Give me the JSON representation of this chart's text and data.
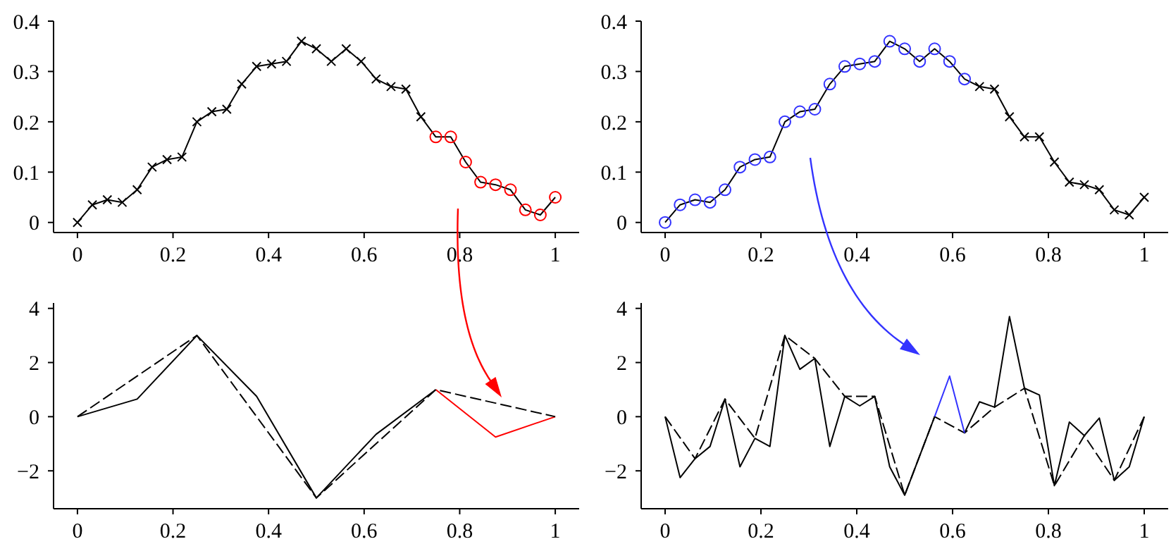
{
  "chart_data": [
    {
      "type": "line",
      "xlim": [
        -0.05,
        1.05
      ],
      "ylim": [
        -0.02,
        0.4
      ],
      "xticks": [
        0,
        0.2,
        0.4,
        0.6,
        0.8,
        1
      ],
      "yticks": [
        0,
        0.1,
        0.2,
        0.3,
        0.4
      ],
      "series": [
        {
          "color": "#000000",
          "marker": "none",
          "line_style": "solid",
          "x": [
            0,
            0.03125,
            0.0625,
            0.09375,
            0.125,
            0.15625,
            0.1875,
            0.21875,
            0.25,
            0.28125,
            0.3125,
            0.34375,
            0.375,
            0.40625,
            0.4375,
            0.46875,
            0.5,
            0.53125,
            0.5625,
            0.59375,
            0.625,
            0.65625,
            0.6875,
            0.71875,
            0.75,
            0.78125,
            0.8125,
            0.84375,
            0.875,
            0.90625,
            0.9375,
            0.96875,
            1
          ],
          "values": [
            0,
            0.035,
            0.045,
            0.04,
            0.065,
            0.11,
            0.125,
            0.13,
            0.2,
            0.22,
            0.225,
            0.275,
            0.31,
            0.315,
            0.32,
            0.36,
            0.345,
            0.32,
            0.345,
            0.32,
            0.285,
            0.27,
            0.265,
            0.21,
            0.17,
            0.17,
            0.12,
            0.08,
            0.075,
            0.065,
            0.025,
            0.015,
            0.05
          ]
        },
        {
          "type": "scatter",
          "color": "#000000",
          "marker": "cross",
          "x": [
            0,
            0.03125,
            0.0625,
            0.09375,
            0.125,
            0.15625,
            0.1875,
            0.21875,
            0.25,
            0.28125,
            0.3125,
            0.34375,
            0.375,
            0.40625,
            0.4375,
            0.46875,
            0.5,
            0.53125,
            0.5625,
            0.59375,
            0.625,
            0.65625,
            0.6875,
            0.71875
          ],
          "values": [
            0,
            0.035,
            0.045,
            0.04,
            0.065,
            0.11,
            0.125,
            0.13,
            0.2,
            0.22,
            0.225,
            0.275,
            0.31,
            0.315,
            0.32,
            0.36,
            0.345,
            0.32,
            0.345,
            0.32,
            0.285,
            0.27,
            0.265,
            0.21
          ]
        },
        {
          "type": "scatter",
          "color": "#ff0000",
          "marker": "circle",
          "x": [
            0.75,
            0.78125,
            0.8125,
            0.84375,
            0.875,
            0.90625,
            0.9375,
            0.96875,
            1
          ],
          "values": [
            0.17,
            0.17,
            0.12,
            0.08,
            0.075,
            0.065,
            0.025,
            0.015,
            0.05
          ]
        }
      ]
    },
    {
      "type": "line",
      "xlim": [
        -0.05,
        1.05
      ],
      "ylim": [
        -0.02,
        0.4
      ],
      "xticks": [
        0,
        0.2,
        0.4,
        0.6,
        0.8,
        1
      ],
      "yticks": [
        0,
        0.1,
        0.2,
        0.3,
        0.4
      ],
      "series": [
        {
          "color": "#000000",
          "marker": "none",
          "line_style": "solid",
          "x": [
            0,
            0.03125,
            0.0625,
            0.09375,
            0.125,
            0.15625,
            0.1875,
            0.21875,
            0.25,
            0.28125,
            0.3125,
            0.34375,
            0.375,
            0.40625,
            0.4375,
            0.46875,
            0.5,
            0.53125,
            0.5625,
            0.59375,
            0.625,
            0.65625,
            0.6875,
            0.71875,
            0.75,
            0.78125,
            0.8125,
            0.84375,
            0.875,
            0.90625,
            0.9375,
            0.96875,
            1
          ],
          "values": [
            0,
            0.035,
            0.045,
            0.04,
            0.065,
            0.11,
            0.125,
            0.13,
            0.2,
            0.22,
            0.225,
            0.275,
            0.31,
            0.315,
            0.32,
            0.36,
            0.345,
            0.32,
            0.345,
            0.32,
            0.285,
            0.27,
            0.265,
            0.21,
            0.17,
            0.17,
            0.12,
            0.08,
            0.075,
            0.065,
            0.025,
            0.015,
            0.05
          ]
        },
        {
          "type": "scatter",
          "color": "#3333ff",
          "marker": "circle",
          "x": [
            0,
            0.03125,
            0.0625,
            0.09375,
            0.125,
            0.15625,
            0.1875,
            0.21875,
            0.25,
            0.28125,
            0.3125,
            0.34375,
            0.375,
            0.40625,
            0.4375,
            0.46875,
            0.5,
            0.53125,
            0.5625,
            0.59375,
            0.625
          ],
          "values": [
            0,
            0.035,
            0.045,
            0.04,
            0.065,
            0.11,
            0.125,
            0.13,
            0.2,
            0.22,
            0.225,
            0.275,
            0.31,
            0.315,
            0.32,
            0.36,
            0.345,
            0.32,
            0.345,
            0.32,
            0.285
          ]
        },
        {
          "type": "scatter",
          "color": "#000000",
          "marker": "cross",
          "x": [
            0.65625,
            0.6875,
            0.71875,
            0.75,
            0.78125,
            0.8125,
            0.84375,
            0.875,
            0.90625,
            0.9375,
            0.96875,
            1
          ],
          "values": [
            0.27,
            0.265,
            0.21,
            0.17,
            0.17,
            0.12,
            0.08,
            0.075,
            0.065,
            0.025,
            0.015,
            0.05
          ]
        }
      ]
    },
    {
      "type": "line",
      "xlim": [
        -0.05,
        1.05
      ],
      "ylim": [
        -3.4,
        4.2
      ],
      "xticks": [
        0,
        0.2,
        0.4,
        0.6,
        0.8,
        1
      ],
      "yticks": [
        {
          "value": -2,
          "label": "−2"
        },
        0,
        2,
        4
      ],
      "series": [
        {
          "color": "#000000",
          "marker": "none",
          "line_style": "solid",
          "x": [
            0,
            0.125,
            0.25,
            0.375,
            0.5,
            0.625,
            0.75
          ],
          "values": [
            0,
            0.65,
            3,
            0.75,
            -3,
            -0.65,
            1
          ]
        },
        {
          "color": "#ff0000",
          "marker": "none",
          "line_style": "solid",
          "x": [
            0.75,
            0.875,
            1
          ],
          "values": [
            1,
            -0.75,
            0
          ]
        },
        {
          "color": "#000000",
          "marker": "none",
          "line_style": "dashed",
          "x": [
            0,
            0.25,
            0.5,
            0.75,
            1
          ],
          "values": [
            0,
            3,
            -3,
            1,
            0
          ]
        }
      ]
    },
    {
      "type": "line",
      "xlim": [
        -0.05,
        1.05
      ],
      "ylim": [
        -3.4,
        4.2
      ],
      "xticks": [
        0,
        0.2,
        0.4,
        0.6,
        0.8,
        1
      ],
      "yticks": [
        {
          "value": -2,
          "label": "−2"
        },
        0,
        2,
        4
      ],
      "series": [
        {
          "color": "#000000",
          "marker": "none",
          "line_style": "dashed",
          "x": [
            0,
            0.0625,
            0.125,
            0.1875,
            0.25,
            0.3125,
            0.375,
            0.4375,
            0.5,
            0.5625,
            0.625,
            0.6875,
            0.75,
            0.8125,
            0.875,
            0.9375,
            1
          ],
          "values": [
            0,
            -1.55,
            0.65,
            -0.8,
            3,
            2.15,
            0.75,
            0.75,
            -2.9,
            0,
            -0.6,
            0.35,
            1.05,
            -2.55,
            -0.7,
            -2.35,
            0
          ]
        },
        {
          "color": "#000000",
          "marker": "none",
          "line_style": "solid",
          "x": [
            0,
            0.03125,
            0.0625,
            0.09375,
            0.125,
            0.15625,
            0.1875,
            0.21875,
            0.25,
            0.28125,
            0.3125,
            0.34375,
            0.375,
            0.40625,
            0.4375,
            0.46875,
            0.5,
            0.53125,
            0.5625,
            0.59375,
            0.625,
            0.65625,
            0.6875,
            0.71875,
            0.75,
            0.78125,
            0.8125,
            0.84375,
            0.875,
            0.90625,
            0.9375,
            0.96875,
            1
          ],
          "values": [
            0,
            -2.25,
            -1.55,
            -1.1,
            0.65,
            -1.85,
            -0.8,
            -1.1,
            3,
            1.75,
            2.15,
            -1.1,
            0.75,
            0.4,
            0.75,
            -1.85,
            -2.9,
            -1.45,
            0,
            null,
            -0.6,
            0.55,
            0.35,
            3.7,
            1.05,
            0.8,
            -2.55,
            -0.2,
            -0.7,
            -0.05,
            -2.35,
            -1.85,
            0
          ]
        },
        {
          "color": "#3333ff",
          "marker": "none",
          "line_style": "solid",
          "x": [
            0.5625,
            0.59375,
            0.625
          ],
          "values": [
            0,
            1.5,
            -0.6
          ]
        }
      ]
    }
  ]
}
